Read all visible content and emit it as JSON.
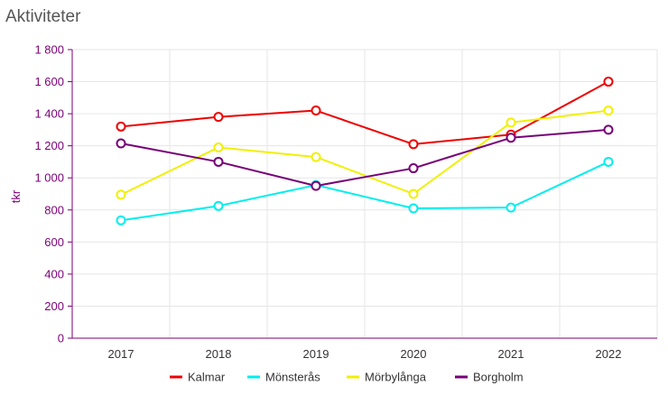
{
  "title": "Aktiviteter",
  "chart_data": {
    "type": "line",
    "title": "Aktiviteter",
    "xlabel": "",
    "ylabel": "tkr",
    "categories": [
      "2017",
      "2018",
      "2019",
      "2020",
      "2021",
      "2022"
    ],
    "ylim": [
      0,
      1800
    ],
    "yticks": [
      0,
      200,
      400,
      600,
      800,
      1000,
      1200,
      1400,
      1600,
      1800
    ],
    "ytick_labels": [
      "0",
      "200",
      "400",
      "600",
      "800",
      "1 000",
      "1 200",
      "1 400",
      "1 600",
      "1 800"
    ],
    "grid": true,
    "legend_position": "bottom",
    "series": [
      {
        "name": "Kalmar",
        "color": "#ee0000",
        "values": [
          1320,
          1380,
          1420,
          1210,
          1270,
          1600
        ]
      },
      {
        "name": "Mönsterås",
        "color": "#00eeee",
        "values": [
          735,
          825,
          955,
          810,
          815,
          1100
        ]
      },
      {
        "name": "Mörbylånga",
        "color": "#f0f000",
        "values": [
          895,
          1190,
          1130,
          900,
          1345,
          1420
        ]
      },
      {
        "name": "Borgholm",
        "color": "#770077",
        "values": [
          1215,
          1100,
          950,
          1060,
          1250,
          1300
        ]
      }
    ]
  }
}
